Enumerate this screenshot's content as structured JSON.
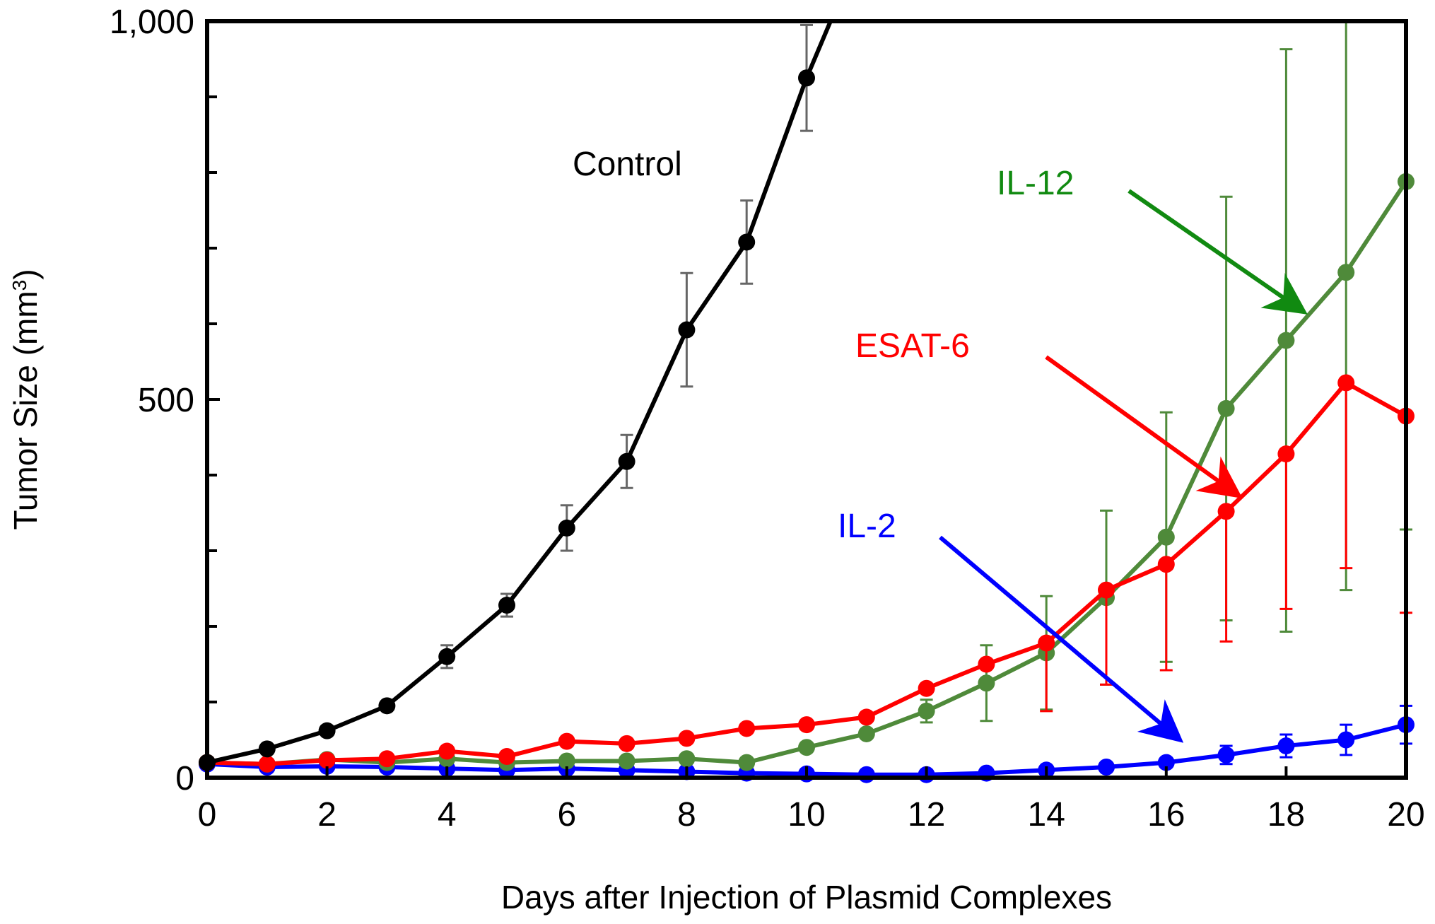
{
  "chart_data": {
    "type": "line",
    "xlabel": "Days after Injection of Plasmid Complexes",
    "ylabel": "Tumor Size (mm",
    "ylabel_sup": "3",
    "ylabel_close": ")",
    "xlim": [
      0,
      20
    ],
    "ylim": [
      0,
      1000
    ],
    "x_ticks": [
      0,
      2,
      4,
      6,
      8,
      10,
      12,
      14,
      16,
      18,
      20
    ],
    "x_tick_labels": [
      "0",
      "2",
      "4",
      "6",
      "8",
      "10",
      "12",
      "14",
      "16",
      "18",
      "20"
    ],
    "y_ticks_labeled": [
      0,
      500,
      1000
    ],
    "y_tick_labels": [
      "0",
      "500",
      "1,000"
    ],
    "y_minor_ticks": [
      100,
      200,
      300,
      400,
      600,
      700,
      800,
      900
    ],
    "grid": false,
    "legend": "inline labels with arrows",
    "series": [
      {
        "name": "Control",
        "color": "#000000",
        "errorbar_color": "#666666",
        "x": [
          0,
          1,
          2,
          3,
          4,
          5,
          6,
          7,
          8,
          9,
          10,
          10.4
        ],
        "y": [
          20,
          38,
          62,
          95,
          160,
          228,
          330,
          418,
          592,
          708,
          925,
          1000
        ],
        "err": [
          0,
          0,
          0,
          0,
          15,
          15,
          30,
          35,
          75,
          55,
          70,
          null
        ]
      },
      {
        "name": "IL-12",
        "color": "#4f8a3a",
        "errorbar_color": "#4f8a3a",
        "x": [
          0,
          1,
          2,
          3,
          4,
          5,
          6,
          7,
          8,
          9,
          10,
          11,
          12,
          13,
          14,
          15,
          16,
          17,
          18,
          19,
          20
        ],
        "y": [
          20,
          18,
          24,
          20,
          25,
          20,
          22,
          22,
          25,
          20,
          40,
          58,
          88,
          125,
          165,
          238,
          318,
          488,
          578,
          668,
          788
        ],
        "err": [
          0,
          0,
          0,
          0,
          0,
          0,
          0,
          0,
          0,
          0,
          0,
          0,
          15,
          50,
          75,
          115,
          165,
          280,
          385,
          420,
          460
        ]
      },
      {
        "name": "ESAT-6",
        "color": "#ff0000",
        "errorbar_color": "#ff0000",
        "x": [
          0,
          1,
          2,
          3,
          4,
          5,
          6,
          7,
          8,
          9,
          10,
          11,
          12,
          13,
          14,
          15,
          16,
          17,
          18,
          19,
          20
        ],
        "y": [
          20,
          18,
          23,
          25,
          35,
          28,
          48,
          45,
          52,
          65,
          70,
          80,
          118,
          150,
          178,
          248,
          282,
          352,
          428,
          522,
          478
        ],
        "err": [
          0,
          0,
          0,
          0,
          0,
          0,
          0,
          0,
          0,
          0,
          0,
          0,
          0,
          0,
          0,
          0,
          0,
          0,
          0,
          0,
          0
        ],
        "err_down": [
          0,
          0,
          0,
          0,
          0,
          0,
          0,
          0,
          0,
          0,
          0,
          0,
          0,
          0,
          90,
          125,
          140,
          172,
          205,
          245,
          260
        ]
      },
      {
        "name": "IL-2",
        "color": "#0000ff",
        "errorbar_color": "#0000ff",
        "x": [
          0,
          1,
          2,
          3,
          4,
          5,
          6,
          7,
          8,
          9,
          10,
          11,
          12,
          13,
          14,
          15,
          16,
          17,
          18,
          19,
          20
        ],
        "y": [
          18,
          14,
          15,
          14,
          12,
          10,
          12,
          10,
          8,
          6,
          5,
          4,
          4,
          6,
          10,
          14,
          20,
          30,
          42,
          50,
          70
        ],
        "err": [
          0,
          0,
          0,
          0,
          0,
          0,
          0,
          0,
          0,
          0,
          0,
          0,
          0,
          0,
          0,
          0,
          0,
          12,
          15,
          20,
          25
        ]
      }
    ],
    "annotations": [
      "Control",
      "IL-12",
      "ESAT-6",
      "IL-2"
    ]
  }
}
